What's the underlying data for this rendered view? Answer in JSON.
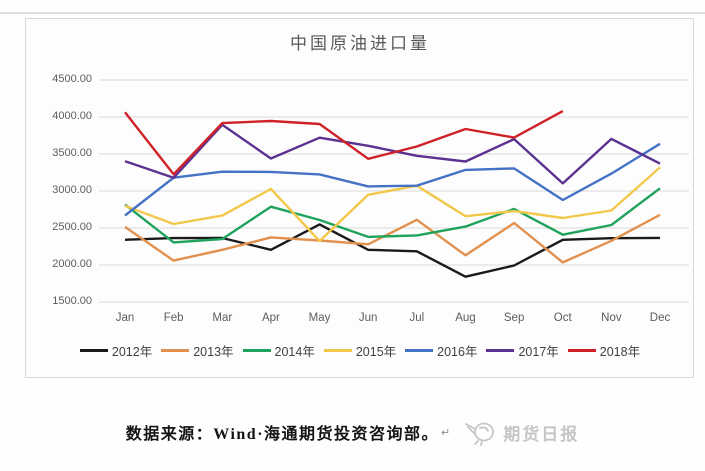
{
  "page": {
    "footer": {
      "source_text": "数据来源：Wind·海通期货投资咨询部。",
      "return_mark": "↵",
      "watermark_text": "期货日报"
    }
  },
  "chart_data": {
    "type": "line",
    "title": "中国原油进口量",
    "xlabel": "",
    "ylabel": "",
    "ylim": [
      1500,
      4500
    ],
    "grid": true,
    "legend_position": "bottom",
    "y_tick_labels": [
      "4500.00",
      "4000.00",
      "3500.00",
      "3000.00",
      "2500.00",
      "2000.00",
      "1500.00"
    ],
    "categories": [
      "Jan",
      "Feb",
      "Mar",
      "Apr",
      "May",
      "Jun",
      "Jul",
      "Aug",
      "Sep",
      "Oct",
      "Nov",
      "Dec"
    ],
    "series": [
      {
        "name": "2012年",
        "color": "#1a1a1a",
        "values": [
          2341,
          2364,
          2365,
          2205,
          2548,
          2205,
          2185,
          1842,
          1993,
          2341,
          2362,
          2366
        ]
      },
      {
        "name": "2013年",
        "color": "#e2904e",
        "values": [
          2515,
          2060,
          2206,
          2373,
          2331,
          2280,
          2611,
          2131,
          2568,
          2035,
          2327,
          2678
        ]
      },
      {
        "name": "2014年",
        "color": "#1fa35c",
        "values": [
          2816,
          2305,
          2352,
          2788,
          2608,
          2380,
          2400,
          2519,
          2758,
          2409,
          2541,
          3037
        ]
      },
      {
        "name": "2015年",
        "color": "#f2c84b",
        "values": [
          2798,
          2554,
          2667,
          3029,
          2324,
          2949,
          3071,
          2659,
          2729,
          2635,
          2737,
          3319
        ]
      },
      {
        "name": "2016年",
        "color": "#4472c4",
        "values": [
          2669,
          3180,
          3261,
          3258,
          3224,
          3062,
          3071,
          3285,
          3306,
          2879,
          3235,
          3638
        ]
      },
      {
        "name": "2017年",
        "color": "#5b3191",
        "values": [
          3403,
          3178,
          3895,
          3439,
          3720,
          3611,
          3475,
          3398,
          3701,
          3103,
          3704,
          3370
        ]
      },
      {
        "name": "2018年",
        "color": "#cf2128",
        "values": [
          4064,
          3226,
          3917,
          3946,
          3905,
          3435,
          3602,
          3838,
          3721,
          4080,
          null,
          null
        ]
      }
    ]
  }
}
